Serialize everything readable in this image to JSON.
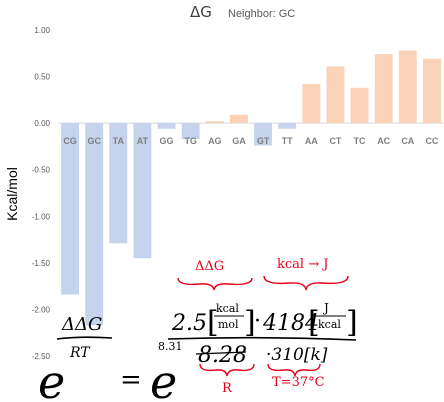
{
  "chart_data": {
    "type": "bar",
    "title": "ΔG",
    "subtitle": "Neighbor: GC",
    "ylabel": "Kcal/mol",
    "ylim": [
      -2.5,
      1.0
    ],
    "yticks": [
      "1.00",
      "0.50",
      "0.00",
      "-0.50",
      "-1.00",
      "-1.50",
      "-2.00",
      "-2.50"
    ],
    "categories": [
      "CG",
      "GC",
      "TA",
      "AT",
      "GG",
      "TG",
      "AG",
      "GA",
      "GT",
      "TT",
      "AA",
      "CT",
      "TC",
      "AC",
      "CA",
      "CC"
    ],
    "values": [
      -1.84,
      -2.17,
      -1.29,
      -1.45,
      -0.06,
      -0.17,
      0.02,
      0.09,
      -0.24,
      -0.06,
      0.42,
      0.61,
      0.38,
      0.74,
      0.78,
      0.69
    ],
    "colors": {
      "negative": "#c5d3ec",
      "positive": "#f9d2b7"
    }
  },
  "annotations": {
    "frac_num": "ΔΔG",
    "frac_den": "RT",
    "e_left": "e",
    "equals": "=",
    "e_right": "e",
    "label_ddg": "ΔΔG",
    "label_kcal_to_j": "kcal → J",
    "num_value": "2.5",
    "num_unit_top": "kcal",
    "num_unit_bottom": "mol",
    "num_dot": "·",
    "num_factor": "4184",
    "num_unit2_top": "J",
    "num_unit2_bottom": "kcal",
    "r_value_small": "8.31",
    "r_value_crossed": "8.28",
    "temp_value": "·310[k]",
    "label_r": "R",
    "label_temp": "T=37°C",
    "ink_color": "#000000",
    "accent_color": "#e8001c"
  }
}
